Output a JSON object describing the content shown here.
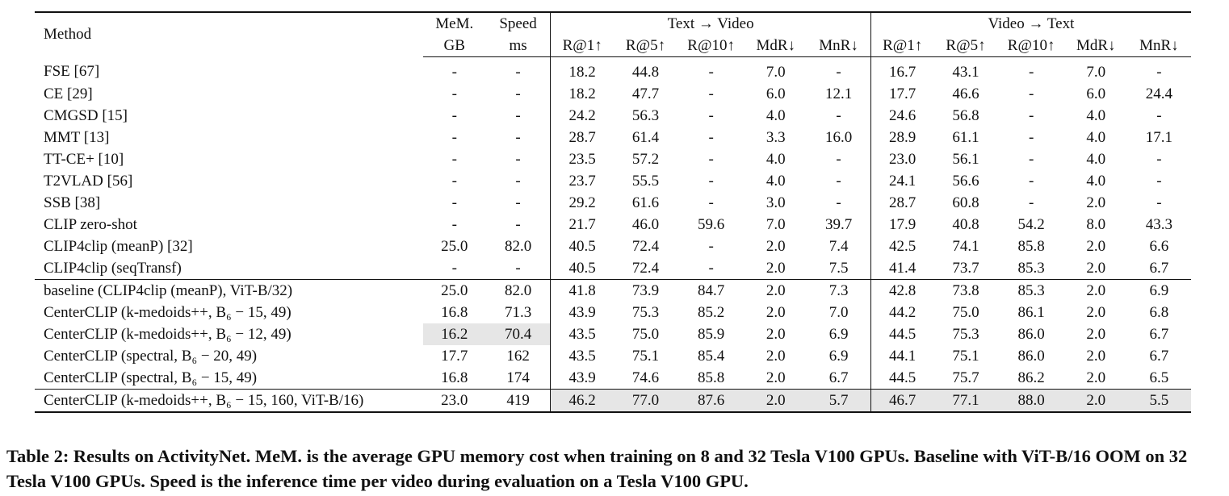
{
  "table": {
    "header": {
      "method": "Method",
      "mem": [
        "MeM.",
        "GB"
      ],
      "speed": [
        "Speed",
        "ms"
      ],
      "t2v_group": "Text → Video",
      "v2t_group": "Video → Text",
      "metrics": [
        "R@1↑",
        "R@5↑",
        "R@10↑",
        "MdR↓",
        "MnR↓"
      ]
    },
    "groups": [
      [
        {
          "method": "FSE [67]",
          "mem": "-",
          "speed": "-",
          "t2v": [
            "18.2",
            "44.8",
            "-",
            "7.0",
            "-"
          ],
          "v2t": [
            "16.7",
            "43.1",
            "-",
            "7.0",
            "-"
          ]
        },
        {
          "method": "CE [29]",
          "mem": "-",
          "speed": "-",
          "t2v": [
            "18.2",
            "47.7",
            "-",
            "6.0",
            "12.1"
          ],
          "v2t": [
            "17.7",
            "46.6",
            "-",
            "6.0",
            "24.4"
          ]
        },
        {
          "method": "CMGSD [15]",
          "mem": "-",
          "speed": "-",
          "t2v": [
            "24.2",
            "56.3",
            "-",
            "4.0",
            "-"
          ],
          "v2t": [
            "24.6",
            "56.8",
            "-",
            "4.0",
            "-"
          ]
        },
        {
          "method": "MMT [13]",
          "mem": "-",
          "speed": "-",
          "t2v": [
            "28.7",
            "61.4",
            "-",
            "3.3",
            "16.0"
          ],
          "v2t": [
            "28.9",
            "61.1",
            "-",
            "4.0",
            "17.1"
          ]
        },
        {
          "method": "TT-CE+ [10]",
          "mem": "-",
          "speed": "-",
          "t2v": [
            "23.5",
            "57.2",
            "-",
            "4.0",
            "-"
          ],
          "v2t": [
            "23.0",
            "56.1",
            "-",
            "4.0",
            "-"
          ]
        },
        {
          "method": "T2VLAD [56]",
          "mem": "-",
          "speed": "-",
          "t2v": [
            "23.7",
            "55.5",
            "-",
            "4.0",
            "-"
          ],
          "v2t": [
            "24.1",
            "56.6",
            "-",
            "4.0",
            "-"
          ]
        },
        {
          "method": "SSB [38]",
          "mem": "-",
          "speed": "-",
          "t2v": [
            "29.2",
            "61.6",
            "-",
            "3.0",
            "-"
          ],
          "v2t": [
            "28.7",
            "60.8",
            "-",
            "2.0",
            "-"
          ]
        },
        {
          "method": "CLIP zero-shot",
          "mem": "-",
          "speed": "-",
          "t2v": [
            "21.7",
            "46.0",
            "59.6",
            "7.0",
            "39.7"
          ],
          "v2t": [
            "17.9",
            "40.8",
            "54.2",
            "8.0",
            "43.3"
          ]
        },
        {
          "method": "CLIP4clip (meanP) [32]",
          "mem": "25.0",
          "speed": "82.0",
          "t2v": [
            "40.5",
            "72.4",
            "-",
            "2.0",
            "7.4"
          ],
          "v2t": [
            "42.5",
            "74.1",
            "85.8",
            "2.0",
            "6.6"
          ]
        },
        {
          "method": "CLIP4clip (seqTransf)",
          "mem": "-",
          "speed": "-",
          "t2v": [
            "40.5",
            "72.4",
            "-",
            "2.0",
            "7.5"
          ],
          "v2t": [
            "41.4",
            "73.7",
            "85.3",
            "2.0",
            "6.7"
          ]
        }
      ],
      [
        {
          "method": "baseline (CLIP4clip (meanP), ViT-B/32)",
          "mem": "25.0",
          "speed": "82.0",
          "t2v": [
            "41.8",
            "73.9",
            "84.7",
            "2.0",
            "7.3"
          ],
          "v2t": [
            "42.8",
            "73.8",
            "85.3",
            "2.0",
            "6.9"
          ]
        },
        {
          "method": "CenterCLIP (k-medoids++, B₆ − 15, 49)",
          "mem": "16.8",
          "speed": "71.3",
          "t2v": [
            "43.9",
            "75.3",
            "85.2",
            "2.0",
            "7.0"
          ],
          "v2t": [
            "44.2",
            "75.0",
            "86.1",
            "2.0",
            "6.8"
          ]
        },
        {
          "method": "CenterCLIP (k-medoids++, B₆ − 12, 49)",
          "mem": "16.2",
          "speed": "70.4",
          "t2v": [
            "43.5",
            "75.0",
            "85.9",
            "2.0",
            "6.9"
          ],
          "v2t": [
            "44.5",
            "75.3",
            "86.0",
            "2.0",
            "6.7"
          ],
          "hl_mem_speed": true
        },
        {
          "method": "CenterCLIP (spectral, B₆ − 20, 49)",
          "mem": "17.7",
          "speed": "162",
          "t2v": [
            "43.5",
            "75.1",
            "85.4",
            "2.0",
            "6.9"
          ],
          "v2t": [
            "44.1",
            "75.1",
            "86.0",
            "2.0",
            "6.7"
          ]
        },
        {
          "method": "CenterCLIP (spectral, B₆ − 15, 49)",
          "mem": "16.8",
          "speed": "174",
          "t2v": [
            "43.9",
            "74.6",
            "85.8",
            "2.0",
            "6.7"
          ],
          "v2t": [
            "44.5",
            "75.7",
            "86.2",
            "2.0",
            "6.5"
          ]
        }
      ],
      [
        {
          "method": "CenterCLIP (k-medoids++, B₆ − 15, 160, ViT-B/16)",
          "mem": "23.0",
          "speed": "419",
          "t2v": [
            "46.2",
            "77.0",
            "87.6",
            "2.0",
            "5.7"
          ],
          "v2t": [
            "46.7",
            "77.1",
            "88.0",
            "2.0",
            "5.5"
          ],
          "hl_metrics": true
        }
      ]
    ]
  },
  "caption": "Table 2: Results on ActivityNet. MeM. is the average GPU memory cost when training on 8 and 32 Tesla V100 GPUs. Baseline with ViT-B/16 OOM on 32 Tesla V100 GPUs. Speed is the inference time per video during evaluation on a Tesla V100 GPU."
}
